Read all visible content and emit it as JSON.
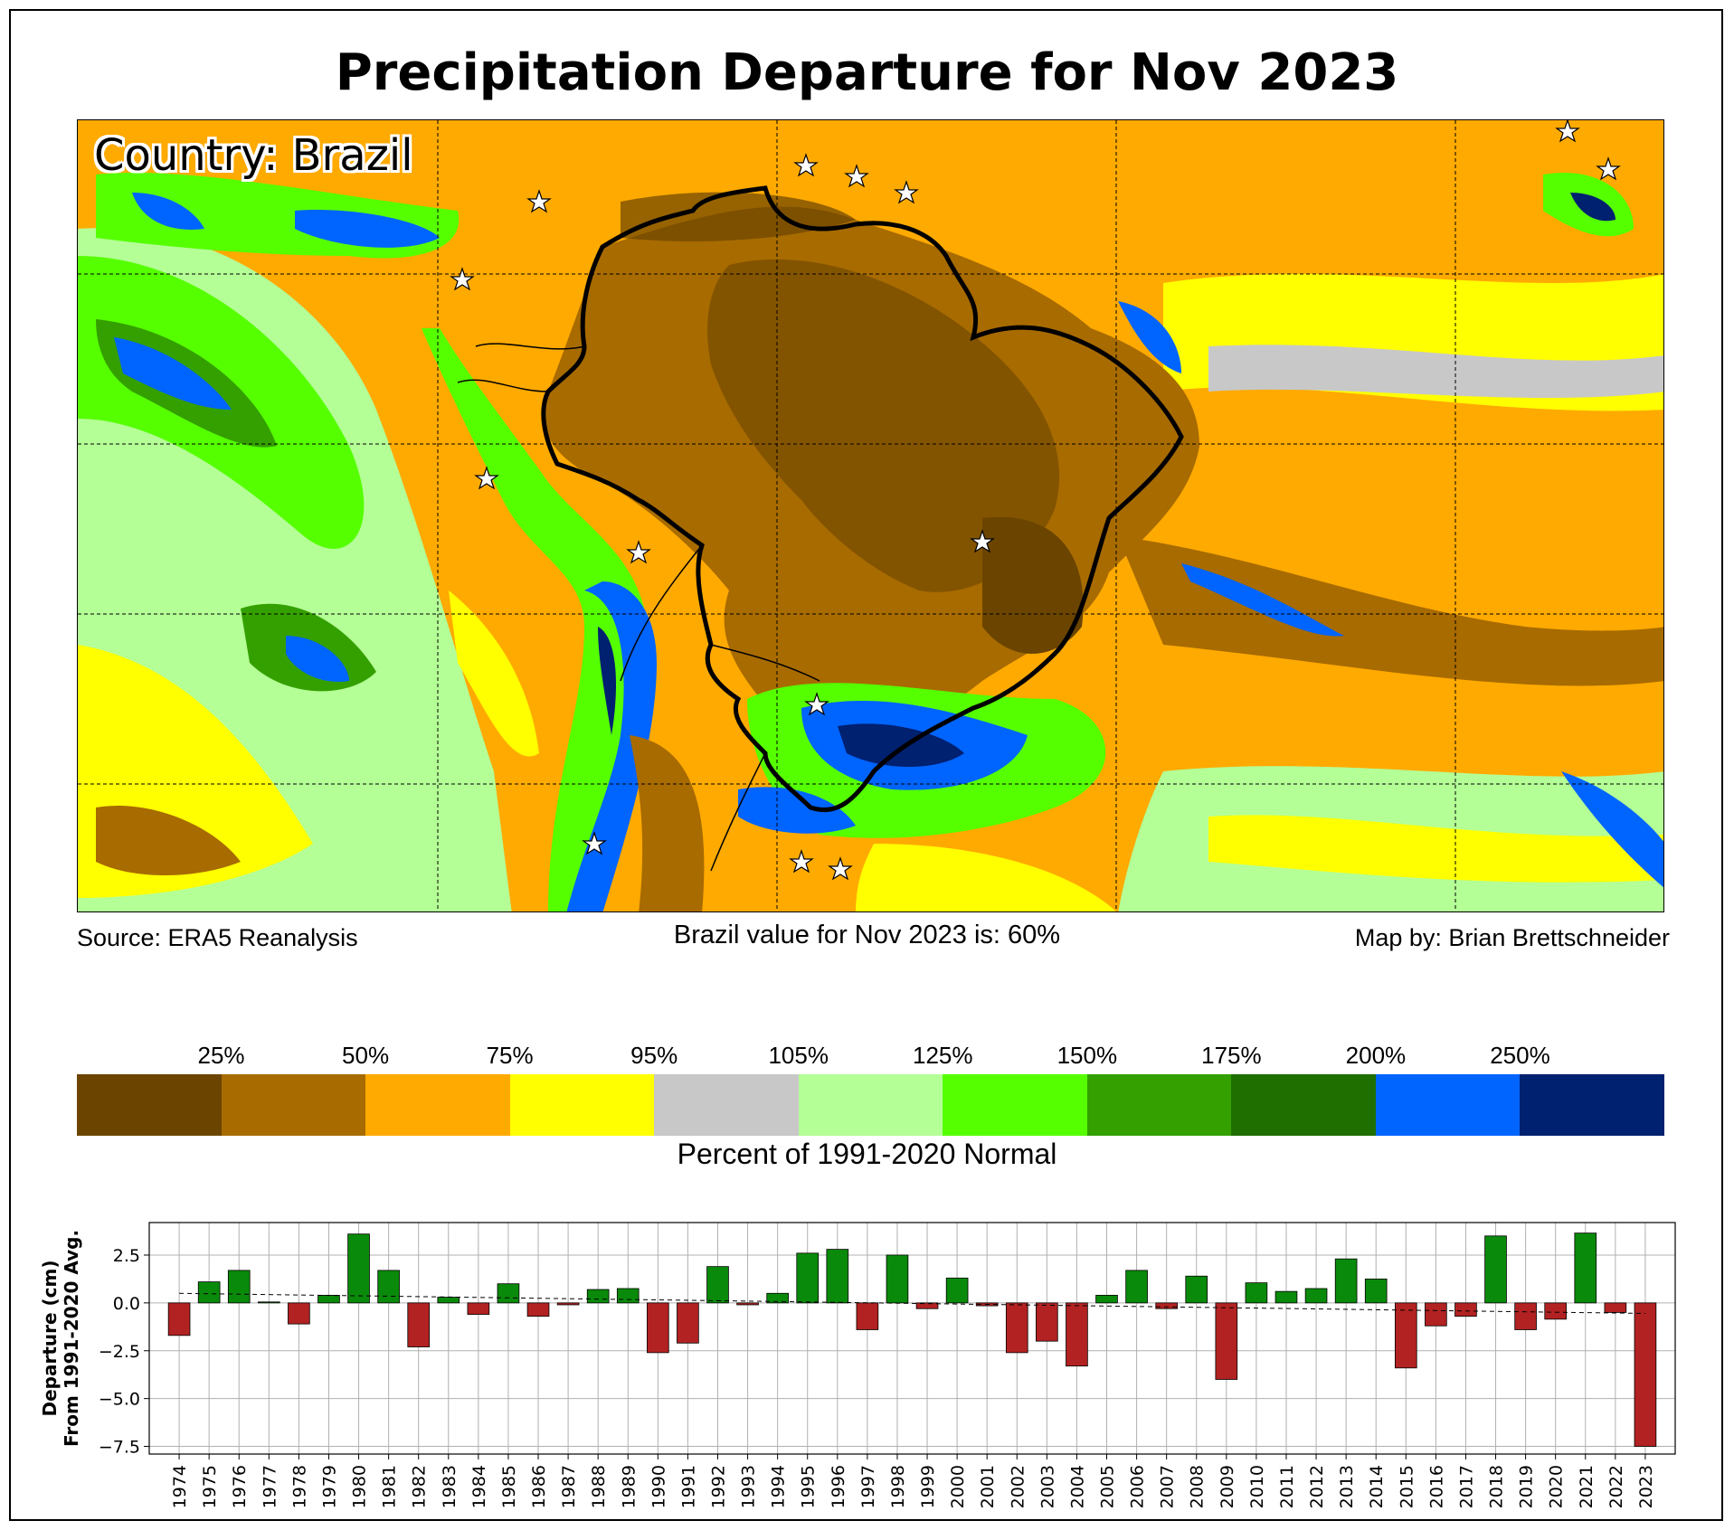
{
  "title": "Precipitation Departure for Nov 2023",
  "map": {
    "country_label": "Country: Brazil",
    "source": "Source: ERA5 Reanalysis",
    "value_text": "Brazil value for Nov 2023 is: 60%",
    "credit": "Map by: Brian Brettschneider"
  },
  "colorbar": {
    "colors": [
      "#6b4500",
      "#a86b00",
      "#ffaa00",
      "#ffff00",
      "#c8c8c8",
      "#b4ff96",
      "#55ff00",
      "#34a000",
      "#1e6e00",
      "#0064ff",
      "#002070"
    ],
    "ticks": [
      "25%",
      "50%",
      "75%",
      "95%",
      "105%",
      "125%",
      "150%",
      "175%",
      "200%",
      "250%"
    ],
    "label": "Percent of 1991-2020 Normal"
  },
  "chart_data": {
    "type": "bar",
    "ylabel": "Departure (cm)\nFrom 1991-2020 Avg.",
    "ylim": [
      -7.9,
      4.2
    ],
    "yticks": [
      2.5,
      0.0,
      -2.5,
      -5.0,
      -7.5
    ],
    "ytick_labels": [
      "2.5",
      "0.0",
      "−2.5",
      "−5.0",
      "−7.5"
    ],
    "grid": true,
    "positive_color": "#0a8a0a",
    "negative_color": "#b22222",
    "categories": [
      "1974",
      "1975",
      "1976",
      "1977",
      "1978",
      "1979",
      "1980",
      "1981",
      "1982",
      "1983",
      "1984",
      "1985",
      "1986",
      "1987",
      "1988",
      "1989",
      "1990",
      "1991",
      "1992",
      "1993",
      "1994",
      "1995",
      "1996",
      "1997",
      "1998",
      "1999",
      "2000",
      "2001",
      "2002",
      "2003",
      "2004",
      "2005",
      "2006",
      "2007",
      "2008",
      "2009",
      "2010",
      "2011",
      "2012",
      "2013",
      "2014",
      "2015",
      "2016",
      "2017",
      "2018",
      "2019",
      "2020",
      "2021",
      "2022",
      "2023"
    ],
    "values": [
      -1.7,
      1.1,
      1.7,
      0.05,
      -1.1,
      0.4,
      3.6,
      1.7,
      -2.3,
      0.3,
      -0.6,
      1.0,
      -0.7,
      -0.1,
      0.7,
      0.75,
      -2.6,
      -2.1,
      1.9,
      -0.1,
      0.5,
      2.6,
      2.8,
      -1.4,
      2.5,
      -0.3,
      1.3,
      -0.15,
      -2.6,
      -2.0,
      -3.3,
      0.4,
      1.7,
      -0.3,
      1.4,
      -4.0,
      1.05,
      0.6,
      0.75,
      2.3,
      1.25,
      -3.4,
      -1.2,
      -0.7,
      3.5,
      -1.4,
      -0.85,
      3.65,
      -0.5,
      -7.5
    ],
    "trend": {
      "start": 0.5,
      "end": -0.55
    }
  }
}
